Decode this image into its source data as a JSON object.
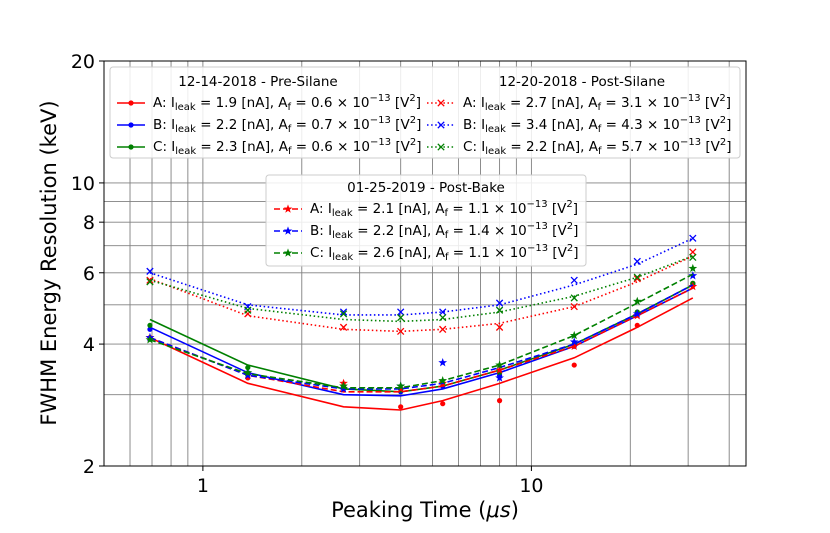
{
  "chart_data": {
    "type": "line",
    "xscale": "log",
    "yscale": "log",
    "xlim": [
      0.5,
      45
    ],
    "ylim": [
      2,
      20
    ],
    "xlabel": "Peaking Time (",
    "xlabel_unit": "μs",
    "xlabel_end": ")",
    "ylabel": "FWHM Energy Resolution (keV)",
    "xticks": [
      {
        "value": 1,
        "label": "1"
      },
      {
        "value": 10,
        "label": "10"
      }
    ],
    "yticks": [
      {
        "value": 2,
        "label": "2"
      },
      {
        "value": 4,
        "label": "4"
      },
      {
        "value": 6,
        "label": "6"
      },
      {
        "value": 8,
        "label": "8"
      },
      {
        "value": 10,
        "label": "10"
      },
      {
        "value": 20,
        "label": "20"
      }
    ],
    "grid": true,
    "legends": [
      {
        "title": "12-14-2018 - Pre-Silane",
        "group": "pre",
        "entries": [
          {
            "series": 0,
            "sub": "A",
            "ileak": "1.9",
            "af": "0.6"
          },
          {
            "series": 1,
            "sub": "B",
            "ileak": "2.2",
            "af": "0.7"
          },
          {
            "series": 2,
            "sub": "C",
            "ileak": "2.3",
            "af": "0.6"
          }
        ]
      },
      {
        "title": "12-20-2018 - Post-Silane",
        "group": "post",
        "entries": [
          {
            "series": 3,
            "sub": "A",
            "ileak": "2.7",
            "af": "3.1"
          },
          {
            "series": 4,
            "sub": "B",
            "ileak": "3.4",
            "af": "4.3"
          },
          {
            "series": 5,
            "sub": "C",
            "ileak": "2.2",
            "af": "5.7"
          }
        ]
      },
      {
        "title": "01-25-2019 - Post-Bake",
        "group": "bake",
        "entries": [
          {
            "series": 6,
            "sub": "A",
            "ileak": "2.1",
            "af": "1.1"
          },
          {
            "series": 7,
            "sub": "B",
            "ileak": "2.2",
            "af": "1.4"
          },
          {
            "series": 8,
            "sub": "C",
            "ileak": "2.6",
            "af": "1.1"
          }
        ]
      }
    ],
    "legend_text": {
      "ileak_prefix": ": I",
      "ileak_sub": "leak",
      "af_mid": " [nA], A",
      "af_sub": "f",
      "af_eq": " = ",
      "times": " × 10",
      "exp": "−13",
      "unit_open": " [V",
      "unit_sup": "2",
      "unit_close": "]",
      "equals": " = "
    },
    "x": [
      0.69,
      1.37,
      2.68,
      4.0,
      5.37,
      8.0,
      13.5,
      21.0,
      31.0
    ],
    "series": [
      {
        "name": "Pre-Silane A",
        "color": "#ff0000",
        "dash": "solid",
        "marker": "dot",
        "points": [
          4.15,
          3.3,
          3.15,
          2.8,
          2.85,
          2.9,
          3.55,
          4.45,
          5.65
        ],
        "fit": [
          4.15,
          3.2,
          2.8,
          2.75,
          2.9,
          3.2,
          3.7,
          4.4,
          5.2
        ]
      },
      {
        "name": "Pre-Silane B",
        "color": "#0000ff",
        "dash": "solid",
        "marker": "dot",
        "points": [
          4.35,
          3.4,
          3.1,
          3.05,
          3.15,
          3.35,
          3.95,
          4.75,
          5.6
        ],
        "fit": [
          4.4,
          3.4,
          3.0,
          2.98,
          3.1,
          3.4,
          3.95,
          4.7,
          5.5
        ]
      },
      {
        "name": "Pre-Silane C",
        "color": "#008000",
        "dash": "solid",
        "marker": "dot",
        "points": [
          4.45,
          3.5,
          3.15,
          3.1,
          3.2,
          3.4,
          4.0,
          4.8,
          5.65
        ],
        "fit": [
          4.6,
          3.55,
          3.1,
          3.05,
          3.15,
          3.45,
          4.0,
          4.75,
          5.6
        ]
      },
      {
        "name": "Post-Silane A",
        "color": "#ff0000",
        "dash": "dotted",
        "marker": "x",
        "points": [
          5.75,
          4.75,
          4.4,
          4.3,
          4.35,
          4.4,
          4.95,
          5.8,
          6.75
        ],
        "fit": [
          5.8,
          4.7,
          4.35,
          4.3,
          4.35,
          4.5,
          4.95,
          5.7,
          6.6
        ]
      },
      {
        "name": "Post-Silane B",
        "color": "#0000ff",
        "dash": "dotted",
        "marker": "x",
        "points": [
          6.05,
          4.95,
          4.8,
          4.8,
          4.8,
          5.05,
          5.75,
          6.4,
          7.3
        ],
        "fit": [
          6.0,
          5.0,
          4.72,
          4.72,
          4.8,
          5.0,
          5.6,
          6.3,
          7.3
        ]
      },
      {
        "name": "Post-Silane C",
        "color": "#008000",
        "dash": "dotted",
        "marker": "x",
        "points": [
          5.7,
          4.85,
          4.75,
          4.65,
          4.65,
          4.85,
          5.2,
          5.85,
          6.55
        ],
        "fit": [
          5.75,
          4.9,
          4.6,
          4.55,
          4.6,
          4.8,
          5.25,
          5.85,
          6.6
        ]
      },
      {
        "name": "Post-Bake A",
        "color": "#ff0000",
        "dash": "dashed",
        "marker": "star",
        "points": [
          4.15,
          3.35,
          3.2,
          3.1,
          3.2,
          3.45,
          3.95,
          4.7,
          5.55
        ],
        "fit": [
          4.15,
          3.35,
          3.05,
          3.05,
          3.15,
          3.45,
          3.95,
          4.7,
          5.5
        ]
      },
      {
        "name": "Post-Bake B",
        "color": "#0000ff",
        "dash": "dashed",
        "marker": "star",
        "points": [
          4.15,
          3.35,
          3.1,
          3.15,
          3.6,
          3.3,
          4.05,
          4.75,
          5.9
        ],
        "fit": [
          4.15,
          3.35,
          3.1,
          3.1,
          3.2,
          3.5,
          4.0,
          4.75,
          5.6
        ]
      },
      {
        "name": "Post-Bake C",
        "color": "#008000",
        "dash": "dashed",
        "marker": "star",
        "points": [
          4.1,
          3.4,
          3.15,
          3.15,
          3.25,
          3.55,
          4.2,
          5.1,
          6.15
        ],
        "fit": [
          4.1,
          3.38,
          3.12,
          3.12,
          3.25,
          3.55,
          4.2,
          5.05,
          5.95
        ]
      }
    ]
  }
}
